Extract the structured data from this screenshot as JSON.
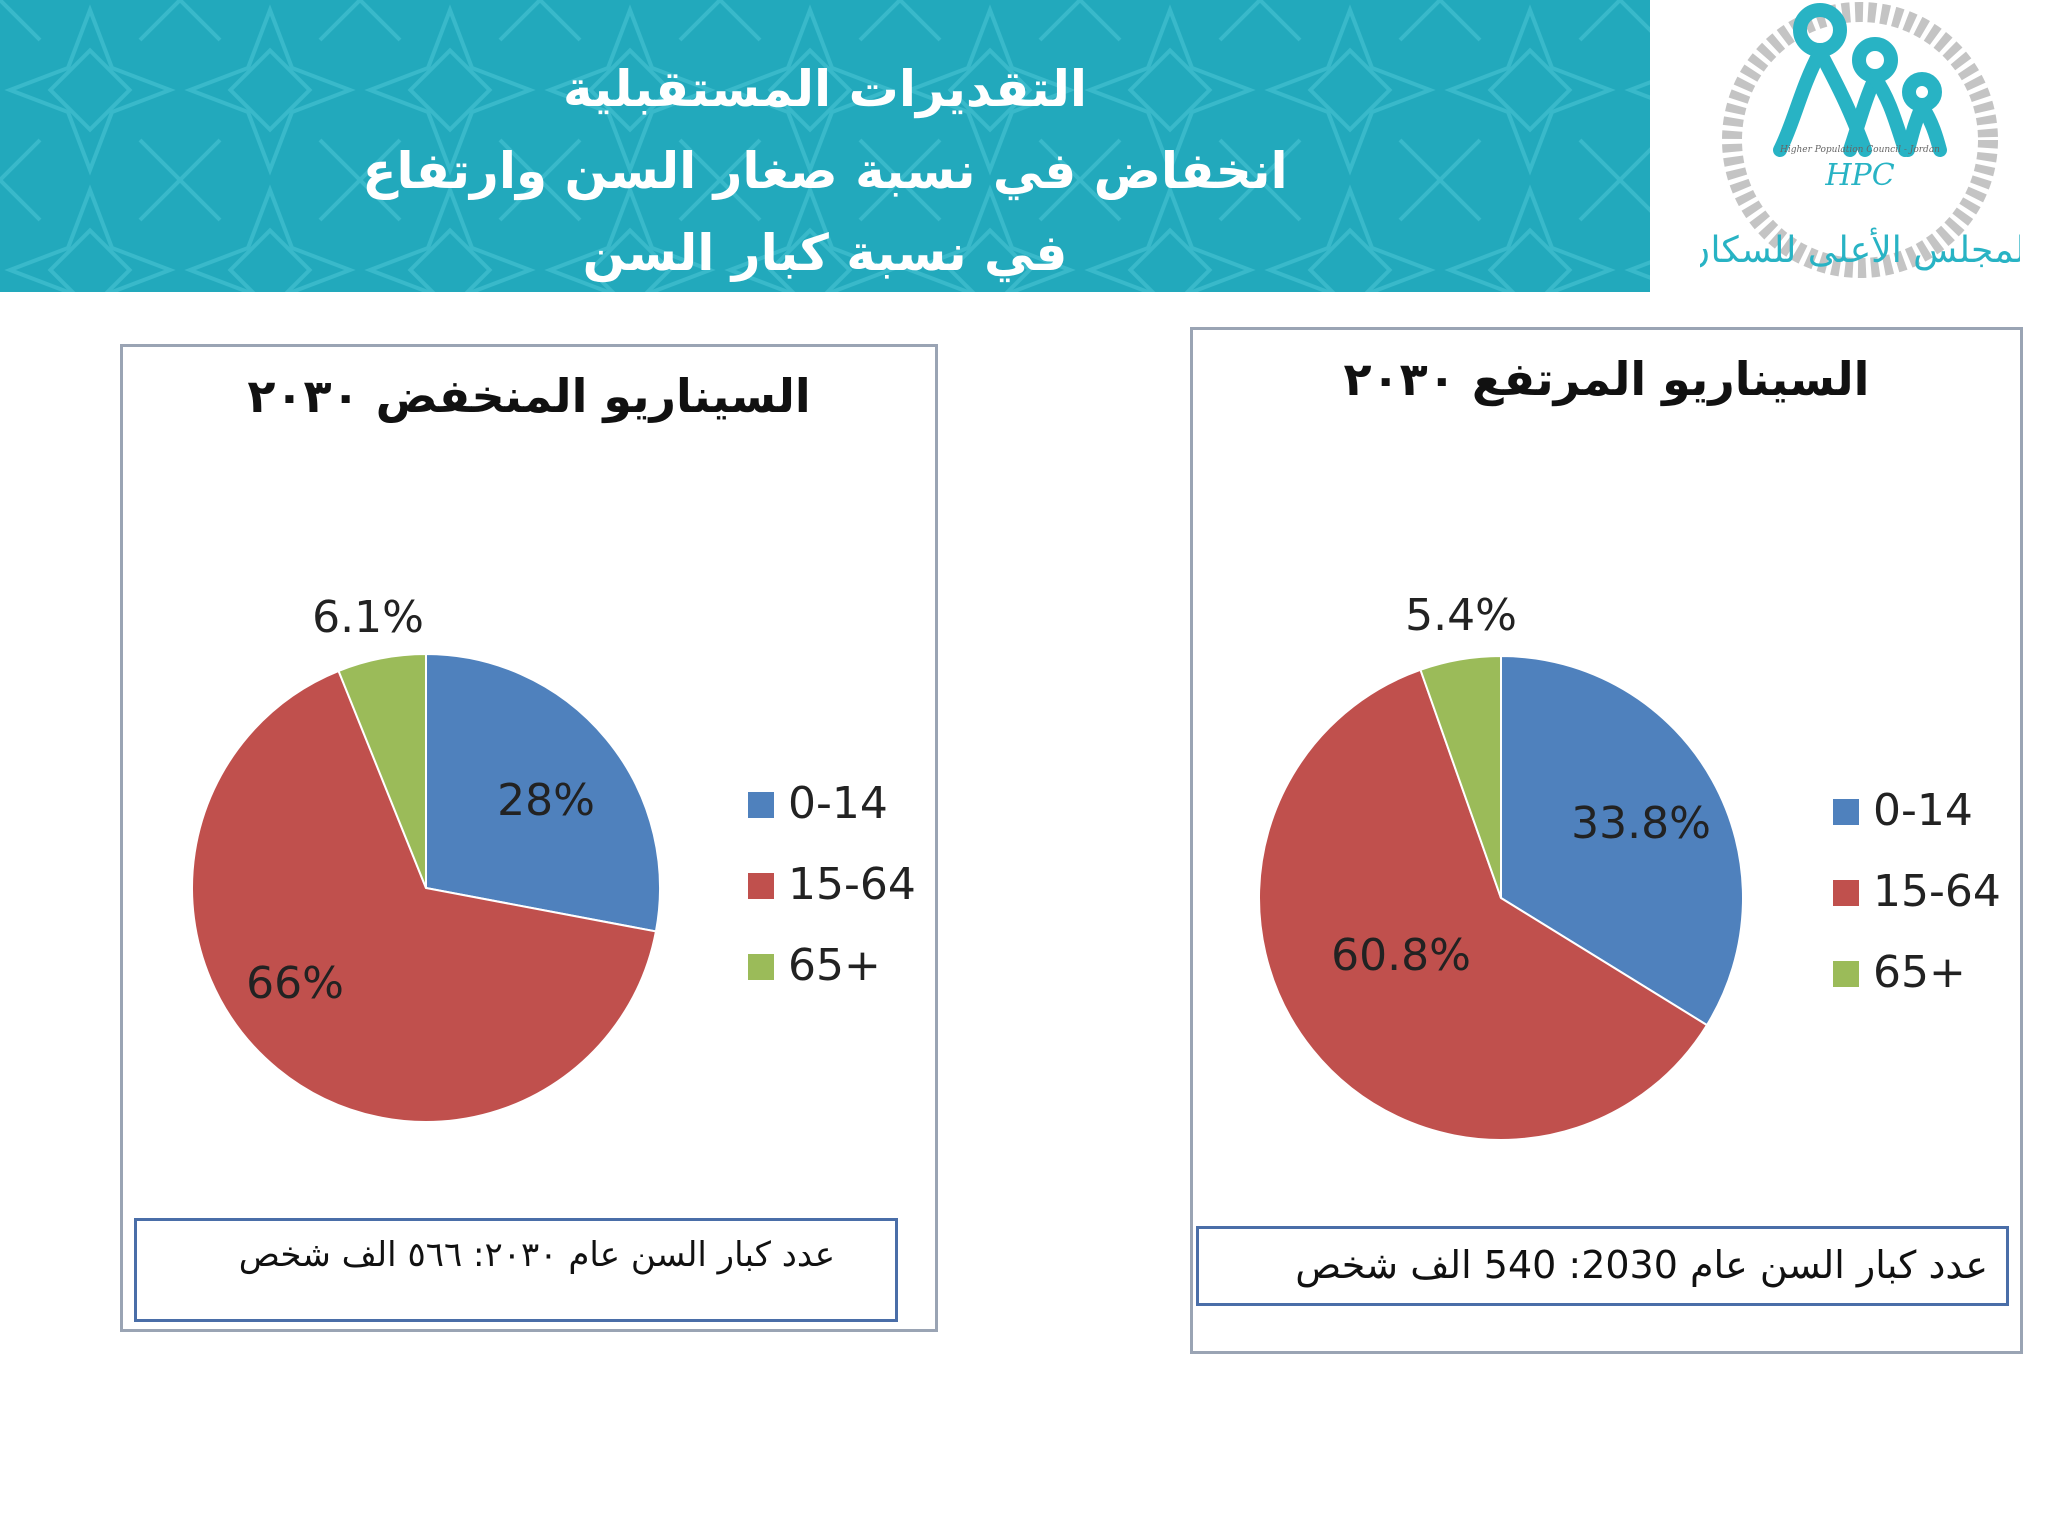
{
  "header": {
    "title_lines": [
      "التقديرات المستقبلية",
      "انخفاض في نسبة صغار السن وارتفاع",
      "في نسبة كبار السن"
    ]
  },
  "logo": {
    "caption_en": "Higher Population Council - Jordan",
    "abbr": "HPC",
    "name_ar": "المجلس الأعلى للسكان",
    "colors": {
      "primary": "#28b3c4",
      "ring": "#b9b9b9"
    }
  },
  "colors": {
    "banner": "#22a9bc",
    "s0": "#4f81bd",
    "s1": "#c0504d",
    "s2": "#9bbb59"
  },
  "chart_data": [
    {
      "type": "pie",
      "title": "السيناريو المنخفض ٢٠٣٠",
      "categories": [
        "0-14",
        "15-64",
        "65+"
      ],
      "values": [
        28,
        66,
        6.1
      ],
      "labels": [
        "28%",
        "66%",
        "6.1%"
      ],
      "colors": [
        "#4f81bd",
        "#c0504d",
        "#9bbb59"
      ],
      "legend": "right",
      "footer": "عدد كبار السن عام ٢٠٣٠: ٥٦٦ الف  شخص"
    },
    {
      "type": "pie",
      "title": "السيناريو المرتفع ٢٠٣٠",
      "categories": [
        "0-14",
        "15-64",
        "65+"
      ],
      "values": [
        33.8,
        60.8,
        5.4
      ],
      "labels": [
        "33.8%",
        "60.8%",
        "5.4%"
      ],
      "colors": [
        "#4f81bd",
        "#c0504d",
        "#9bbb59"
      ],
      "legend": "right",
      "footer": "عدد كبار السن عام 2030:  540  الف شخص"
    }
  ]
}
